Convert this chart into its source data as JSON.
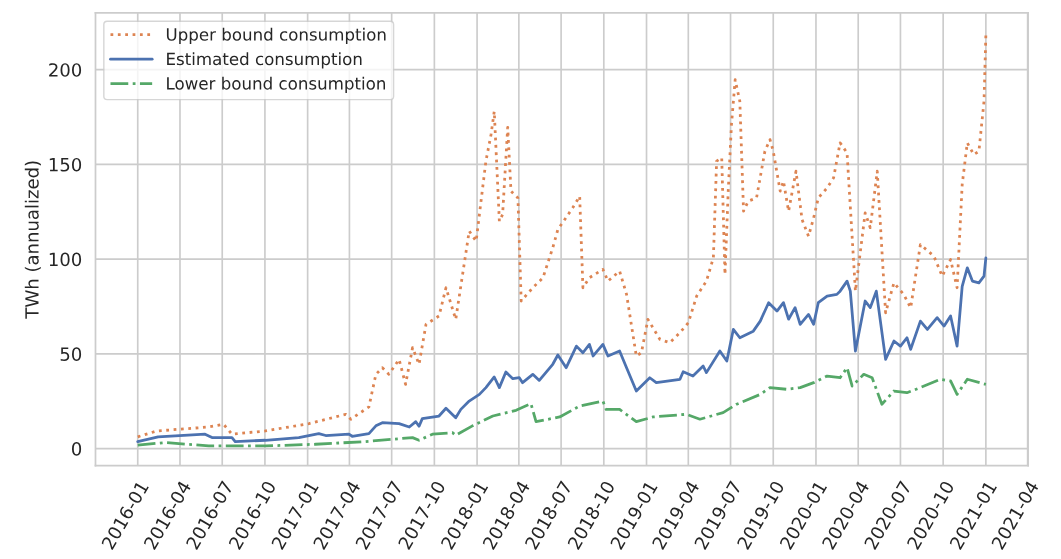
{
  "chart_data": {
    "type": "line",
    "ylabel": "TWh (annualized)",
    "xlim": [
      "2015-10-02",
      "2021-04-02"
    ],
    "ylim": [
      -9,
      230
    ],
    "xticks": [
      "2016-01",
      "2016-04",
      "2016-07",
      "2016-10",
      "2017-01",
      "2017-04",
      "2017-07",
      "2017-10",
      "2018-01",
      "2018-04",
      "2018-07",
      "2018-10",
      "2019-01",
      "2019-04",
      "2019-07",
      "2019-10",
      "2020-01",
      "2020-04",
      "2020-07",
      "2020-10",
      "2021-01",
      "2021-04"
    ],
    "yticks": [
      0,
      50,
      100,
      150,
      200
    ],
    "grid": true,
    "legend": "top left",
    "marker": "none",
    "series": [
      {
        "name": "Upper bound consumption",
        "color": "#dd8452",
        "line_style": "dotted",
        "x": [
          "2016-01-01",
          "2016-02-11",
          "2016-06-02",
          "2016-07-04",
          "2016-07-22",
          "2016-10-02",
          "2017-01-04",
          "2017-03-24",
          "2017-04-04",
          "2017-05-13",
          "2017-05-28",
          "2017-06-11",
          "2017-06-25",
          "2017-07-17",
          "2017-07-31",
          "2017-08-15",
          "2017-08-29",
          "2017-09-13",
          "2017-10-11",
          "2017-10-26",
          "2017-11-16",
          "2017-11-27",
          "2017-12-15",
          "2017-12-30",
          "2018-01-20",
          "2018-01-31",
          "2018-02-07",
          "2018-02-18",
          "2018-02-25",
          "2018-03-08",
          "2018-03-15",
          "2018-03-30",
          "2018-04-06",
          "2018-05-01",
          "2018-05-23",
          "2018-06-13",
          "2018-06-24",
          "2018-07-26",
          "2018-08-10",
          "2018-08-17",
          "2018-08-31",
          "2018-09-29",
          "2018-10-10",
          "2018-11-04",
          "2018-11-19",
          "2018-12-10",
          "2018-12-21",
          "2019-01-04",
          "2019-01-30",
          "2019-02-20",
          "2019-03-14",
          "2019-04-01",
          "2019-04-19",
          "2019-05-10",
          "2019-05-25",
          "2019-06-01",
          "2019-06-12",
          "2019-06-19",
          "2019-06-26",
          "2019-07-03",
          "2019-07-11",
          "2019-07-21",
          "2019-07-29",
          "2019-08-08",
          "2019-08-26",
          "2019-09-13",
          "2019-09-24",
          "2019-10-01",
          "2019-10-16",
          "2019-10-23",
          "2019-11-03",
          "2019-11-19",
          "2019-12-02",
          "2019-12-16",
          "2019-12-27",
          "2020-01-06",
          "2020-01-25",
          "2020-02-08",
          "2020-02-22",
          "2020-03-08",
          "2020-03-26",
          "2020-04-16",
          "2020-04-27",
          "2020-05-12",
          "2020-05-30",
          "2020-06-17",
          "2020-07-08",
          "2020-07-23",
          "2020-08-13",
          "2020-09-11",
          "2020-09-29",
          "2020-10-17",
          "2020-10-31",
          "2020-11-11",
          "2020-11-22",
          "2020-12-06",
          "2020-12-17",
          "2020-12-28",
          "2021-01-01"
        ],
        "values": [
          6.2,
          9.3,
          11.4,
          12.8,
          7.6,
          9.3,
          13.2,
          18.1,
          15.5,
          22.0,
          39.2,
          42.7,
          39.2,
          47.1,
          33.9,
          53.3,
          44.5,
          65.6,
          70.0,
          84.9,
          68.2,
          85.8,
          114.8,
          109.5,
          151.7,
          165.7,
          178.0,
          120.0,
          123.6,
          169.6,
          135.9,
          132.3,
          77.9,
          84.9,
          90.2,
          106.0,
          115.6,
          127.1,
          133.2,
          84.9,
          90.2,
          94.6,
          88.4,
          93.7,
          81.4,
          48.9,
          50.6,
          68.2,
          57.6,
          55.9,
          61.2,
          66.4,
          80.5,
          88.4,
          100.7,
          151.7,
          153.5,
          91.9,
          135.9,
          171.1,
          194.7,
          183.3,
          125.3,
          130.6,
          132.3,
          157.0,
          163.1,
          157.0,
          135.9,
          141.2,
          125.3,
          146.4,
          120.9,
          112.1,
          121.8,
          132.3,
          137.6,
          142.9,
          161.4,
          156.1,
          83.1,
          124.4,
          116.6,
          146.4,
          71.7,
          87.5,
          81.4,
          74.3,
          107.7,
          101.6,
          91.0,
          99.8,
          84.9,
          139.4,
          161.4,
          155.2,
          156.9,
          183.3,
          218.5
        ]
      },
      {
        "name": "Estimated consumption",
        "color": "#4c72b0",
        "line_style": "solid",
        "x": [
          "2016-01-01",
          "2016-02-14",
          "2016-05-25",
          "2016-06-09",
          "2016-07-22",
          "2016-07-29",
          "2016-10-02",
          "2016-12-13",
          "2017-01-25",
          "2017-02-09",
          "2017-03-31",
          "2017-04-07",
          "2017-05-13",
          "2017-05-28",
          "2017-06-11",
          "2017-07-17",
          "2017-08-08",
          "2017-08-22",
          "2017-08-29",
          "2017-09-05",
          "2017-10-11",
          "2017-10-26",
          "2017-11-16",
          "2017-11-27",
          "2017-12-15",
          "2018-01-06",
          "2018-01-20",
          "2018-02-07",
          "2018-02-18",
          "2018-03-04",
          "2018-03-19",
          "2018-04-02",
          "2018-04-09",
          "2018-05-01",
          "2018-05-15",
          "2018-06-13",
          "2018-06-24",
          "2018-07-12",
          "2018-08-03",
          "2018-08-17",
          "2018-08-31",
          "2018-09-08",
          "2018-09-29",
          "2018-10-10",
          "2018-11-04",
          "2018-11-19",
          "2018-12-10",
          "2019-01-08",
          "2019-01-22",
          "2019-03-14",
          "2019-03-21",
          "2019-04-11",
          "2019-05-03",
          "2019-05-10",
          "2019-06-08",
          "2019-06-23",
          "2019-07-07",
          "2019-07-21",
          "2019-08-19",
          "2019-09-03",
          "2019-09-21",
          "2019-10-09",
          "2019-10-23",
          "2019-11-03",
          "2019-11-17",
          "2019-11-28",
          "2019-12-16",
          "2019-12-27",
          "2020-01-06",
          "2020-01-25",
          "2020-02-15",
          "2020-02-22",
          "2020-03-08",
          "2020-03-15",
          "2020-03-26",
          "2020-04-16",
          "2020-04-27",
          "2020-05-10",
          "2020-05-30",
          "2020-06-17",
          "2020-07-01",
          "2020-07-15",
          "2020-07-23",
          "2020-08-13",
          "2020-08-28",
          "2020-09-18",
          "2020-10-03",
          "2020-10-17",
          "2020-10-31",
          "2020-11-11",
          "2020-11-22",
          "2020-12-03",
          "2020-12-17",
          "2020-12-28",
          "2021-01-01"
        ],
        "values": [
          3.7,
          6.2,
          7.6,
          5.8,
          5.8,
          3.7,
          4.4,
          5.8,
          7.9,
          6.9,
          7.6,
          6.5,
          7.9,
          12.0,
          13.7,
          13.2,
          11.4,
          14.2,
          11.8,
          15.8,
          17.2,
          21.3,
          16.3,
          20.7,
          25.1,
          28.6,
          32.2,
          37.8,
          32.2,
          40.4,
          36.9,
          37.4,
          34.8,
          39.2,
          36.0,
          44.5,
          49.4,
          42.7,
          54.1,
          50.6,
          55.0,
          48.9,
          55.0,
          48.9,
          51.5,
          42.7,
          30.4,
          37.4,
          34.8,
          36.6,
          40.6,
          38.3,
          43.6,
          40.1,
          51.5,
          46.2,
          62.9,
          58.5,
          62.0,
          67.3,
          77.0,
          72.6,
          77.0,
          68.3,
          74.4,
          65.6,
          70.8,
          65.6,
          77.0,
          80.5,
          81.4,
          83.1,
          88.4,
          83.1,
          51.5,
          77.9,
          74.4,
          83.1,
          47.1,
          56.8,
          54.1,
          58.5,
          52.4,
          67.3,
          62.9,
          69.1,
          64.7,
          70.0,
          54.1,
          85.6,
          95.4,
          88.4,
          87.5,
          91.0,
          100.7
        ]
      },
      {
        "name": "Lower bound consumption",
        "color": "#55a868",
        "line_style": "dashdot",
        "x": [
          "2016-01-01",
          "2016-02-29",
          "2016-06-02",
          "2016-10-02",
          "2017-01-18",
          "2017-05-06",
          "2017-08-15",
          "2017-08-29",
          "2017-09-27",
          "2017-11-09",
          "2017-11-16",
          "2017-12-22",
          "2018-02-04",
          "2018-03-26",
          "2018-04-27",
          "2018-05-08",
          "2018-06-28",
          "2018-08-10",
          "2018-09-29",
          "2018-10-06",
          "2018-11-04",
          "2018-12-10",
          "2019-01-15",
          "2019-03-28",
          "2019-04-26",
          "2019-06-15",
          "2019-07-14",
          "2019-09-03",
          "2019-09-24",
          "2019-10-30",
          "2019-11-28",
          "2019-12-27",
          "2020-01-25",
          "2020-02-22",
          "2020-03-08",
          "2020-03-19",
          "2020-04-13",
          "2020-05-01",
          "2020-05-22",
          "2020-06-17",
          "2020-07-15",
          "2020-08-13",
          "2020-09-25",
          "2020-10-17",
          "2020-10-31",
          "2020-11-22",
          "2021-01-01"
        ],
        "values": [
          1.8,
          3.2,
          1.4,
          1.4,
          2.3,
          3.7,
          5.8,
          4.4,
          7.6,
          8.4,
          7.0,
          12.0,
          17.2,
          20.2,
          23.7,
          14.2,
          16.7,
          22.5,
          25.1,
          20.7,
          20.7,
          14.2,
          16.7,
          18.1,
          15.5,
          19.0,
          23.4,
          28.6,
          32.2,
          31.3,
          32.2,
          34.8,
          38.3,
          37.4,
          42.7,
          33.0,
          39.2,
          37.4,
          23.4,
          30.4,
          29.5,
          32.2,
          36.6,
          35.7,
          28.6,
          36.6,
          33.9
        ]
      }
    ]
  }
}
